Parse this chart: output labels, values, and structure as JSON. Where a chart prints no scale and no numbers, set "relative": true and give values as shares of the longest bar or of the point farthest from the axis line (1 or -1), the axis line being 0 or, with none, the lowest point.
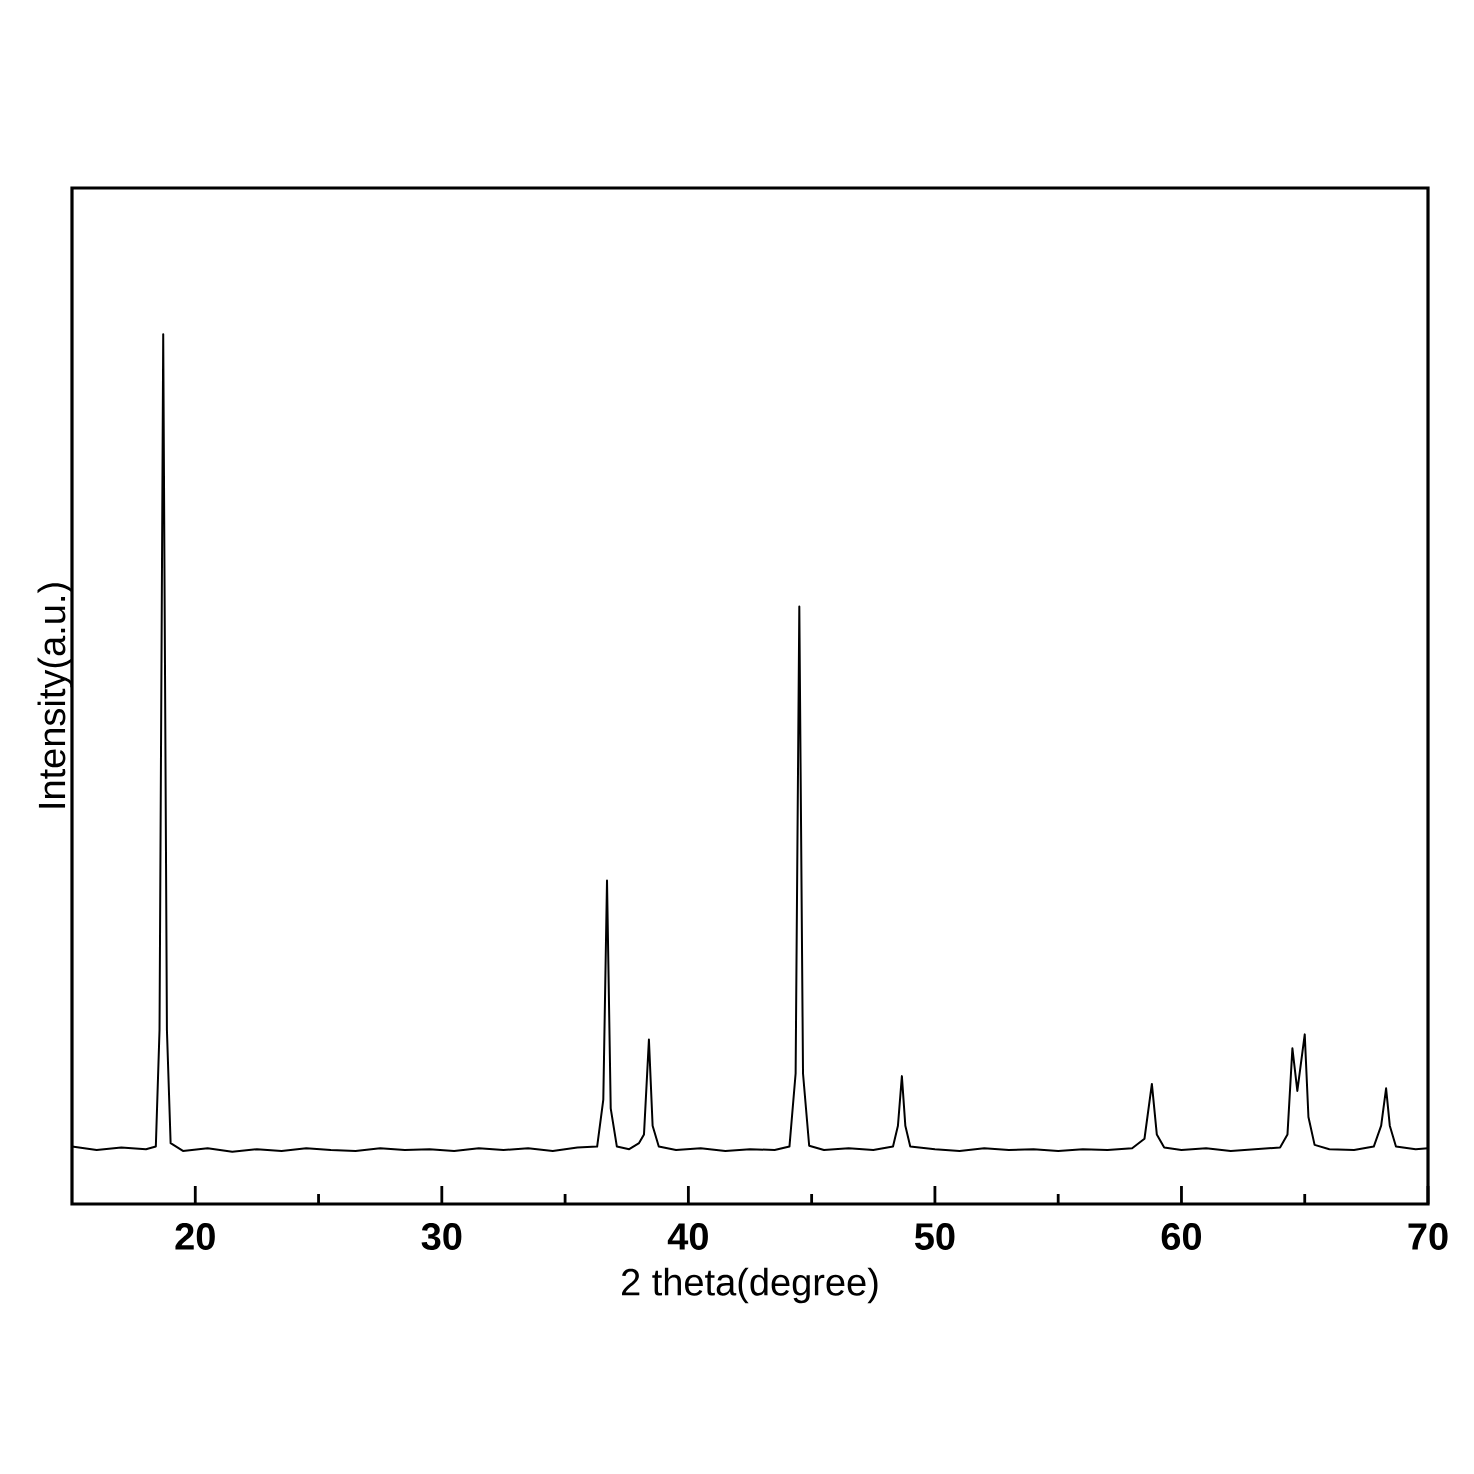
{
  "chart_data": {
    "type": "line",
    "xlabel": "2 theta(degree)",
    "ylabel": "Intensity(a.u.)",
    "relative": true,
    "tick_labels": "x",
    "xlim": [
      15,
      70
    ],
    "xticks": [
      20,
      {
        "value": 25,
        "label": null
      },
      30,
      {
        "value": 35,
        "label": null
      },
      40,
      {
        "value": 45,
        "label": null
      },
      50,
      {
        "value": 55,
        "label": null
      },
      60,
      {
        "value": 65,
        "label": null
      },
      70
    ],
    "x": [
      15.0,
      16.0,
      17.0,
      18.0,
      18.4,
      18.55,
      18.7,
      18.85,
      19.0,
      19.5,
      20.5,
      21.5,
      22.5,
      23.5,
      24.5,
      25.5,
      26.5,
      27.5,
      28.5,
      29.5,
      30.5,
      31.5,
      32.5,
      33.5,
      34.5,
      35.5,
      36.3,
      36.55,
      36.7,
      36.85,
      37.1,
      37.6,
      38.0,
      38.2,
      38.4,
      38.55,
      38.8,
      39.5,
      40.5,
      41.5,
      42.5,
      43.5,
      44.1,
      44.35,
      44.5,
      44.65,
      44.9,
      45.5,
      46.5,
      47.5,
      48.3,
      48.5,
      48.66,
      48.8,
      49.0,
      50.0,
      51.0,
      52.0,
      53.0,
      54.0,
      55.0,
      56.0,
      57.0,
      58.0,
      58.5,
      58.8,
      59.0,
      59.3,
      60.0,
      61.0,
      62.0,
      63.0,
      64.0,
      64.3,
      64.5,
      64.7,
      65.0,
      65.15,
      65.4,
      66.0,
      67.0,
      67.8,
      68.1,
      68.3,
      68.45,
      68.7,
      69.5,
      70.0
    ],
    "series": [
      {
        "color": "#000000",
        "values": [
          0.066,
          0.062,
          0.065,
          0.063,
          0.066,
          0.2,
          1.0,
          0.2,
          0.07,
          0.061,
          0.064,
          0.06,
          0.063,
          0.061,
          0.064,
          0.062,
          0.061,
          0.064,
          0.062,
          0.063,
          0.061,
          0.064,
          0.062,
          0.064,
          0.061,
          0.065,
          0.066,
          0.12,
          0.372,
          0.11,
          0.066,
          0.063,
          0.07,
          0.08,
          0.189,
          0.09,
          0.066,
          0.062,
          0.064,
          0.061,
          0.063,
          0.062,
          0.066,
          0.15,
          0.687,
          0.15,
          0.067,
          0.062,
          0.064,
          0.062,
          0.066,
          0.09,
          0.147,
          0.09,
          0.066,
          0.063,
          0.061,
          0.064,
          0.062,
          0.063,
          0.061,
          0.063,
          0.062,
          0.064,
          0.075,
          0.138,
          0.08,
          0.065,
          0.062,
          0.064,
          0.061,
          0.063,
          0.065,
          0.08,
          0.179,
          0.13,
          0.195,
          0.1,
          0.068,
          0.063,
          0.062,
          0.066,
          0.09,
          0.133,
          0.09,
          0.066,
          0.063,
          0.064
        ]
      }
    ]
  }
}
